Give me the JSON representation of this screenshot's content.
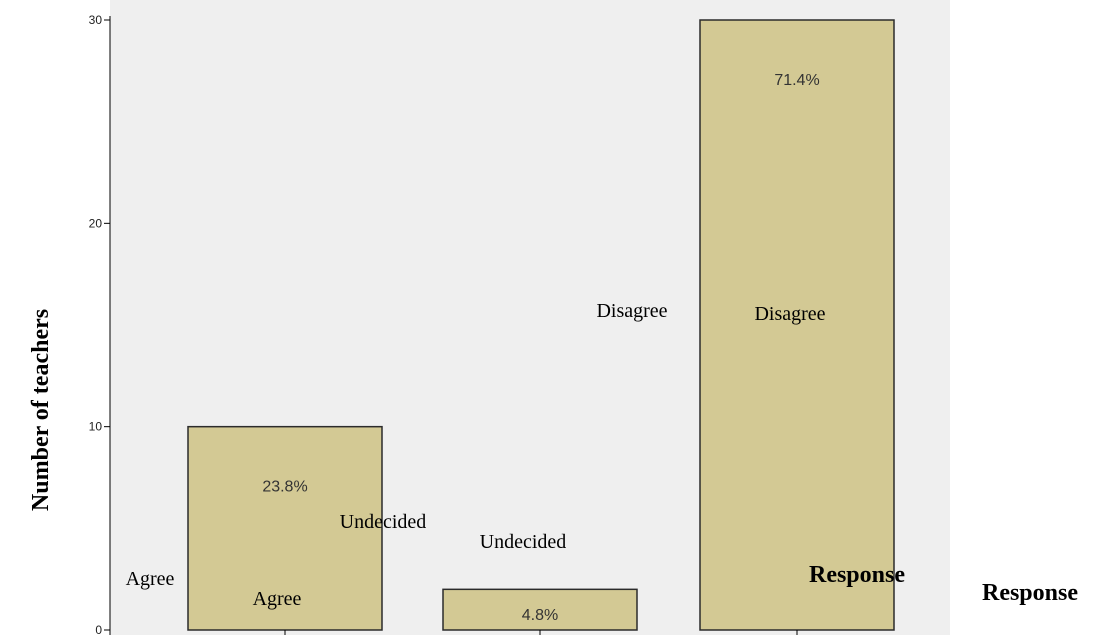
{
  "chart_data": {
    "type": "bar",
    "categories": [
      "Agree",
      "Undecided",
      "Disagree"
    ],
    "values": [
      10,
      2,
      30
    ],
    "percent_labels": [
      "23.8%",
      "4.8%",
      "71.4%"
    ],
    "ylabel": "Number of teachers",
    "xlabel": "Response",
    "ylim": [
      0,
      30
    ],
    "yticks": [
      0,
      10,
      20,
      30
    ],
    "grid": false,
    "colors": {
      "bar_fill": "#d3c994",
      "bar_stroke": "#2b2b2b",
      "plot_bg": "#efefef"
    },
    "stray_labels": [
      "Agree",
      "Undecided",
      "Disagree",
      "Response"
    ]
  }
}
